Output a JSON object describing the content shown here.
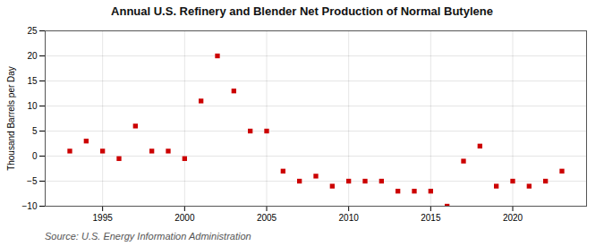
{
  "chart_data": {
    "type": "scatter",
    "title": "Annual U.S. Refinery and Blender Net Production of Normal Butylene",
    "ylabel": "Thousand Barrels per Day",
    "source": "Source: U.S. Energy Information Administration",
    "x": [
      1993,
      1994,
      1995,
      1996,
      1997,
      1998,
      1999,
      2000,
      2001,
      2002,
      2003,
      2004,
      2005,
      2006,
      2007,
      2008,
      2009,
      2010,
      2011,
      2012,
      2013,
      2014,
      2015,
      2016,
      2017,
      2018,
      2019,
      2020,
      2021,
      2022,
      2023
    ],
    "values": [
      1,
      3,
      1,
      -0.5,
      6,
      1,
      1,
      -0.5,
      11,
      20,
      13,
      5,
      5,
      -3,
      -5,
      -4,
      -6,
      -5,
      -5,
      -5,
      -7,
      -7,
      -7,
      -10,
      -1,
      2,
      -6,
      -5,
      -6,
      -5,
      -3
    ],
    "color": "#cc0000",
    "marker": "square",
    "xlim": [
      1991.5,
      2024.5
    ],
    "ylim": [
      -10,
      25
    ],
    "xticks": [
      1995,
      2000,
      2005,
      2010,
      2015,
      2020
    ],
    "yticks": [
      -10,
      -5,
      0,
      5,
      10,
      15,
      20,
      25
    ],
    "grid": true
  }
}
